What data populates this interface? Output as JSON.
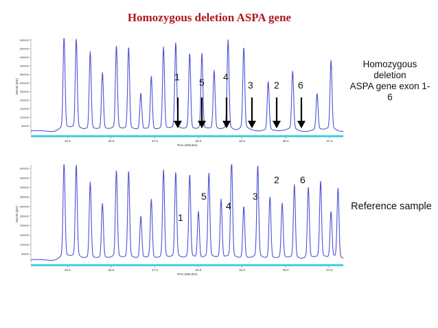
{
  "title": "Homozygous deletion ASPA gene",
  "annotations": {
    "top_note_lines": [
      "Homozygous",
      "deletion",
      "ASPA gene exon 1-6"
    ],
    "bottom_note": "Reference sample"
  },
  "exon_labels_top": [
    "1",
    "5",
    "4",
    "3",
    "2",
    "6"
  ],
  "exon_labels_bottom": [
    "1",
    "5",
    "4",
    "3",
    "2",
    "6"
  ],
  "colors": {
    "title": "#b0161d",
    "trace": "#4b4fd6",
    "axis_bar": "#3fd2e2"
  },
  "chart_data": [
    {
      "type": "line",
      "xlabel": "Time (Minutes)",
      "ylabel": "Mvolts (pre)",
      "xlim": [
        20.4,
        38.3
      ],
      "ylim": [
        0,
        560000
      ],
      "x_ticks": [
        "22.5",
        "25.0",
        "27.5",
        "30.0",
        "32.5",
        "35.0",
        "37.5"
      ],
      "y_ticks": [
        "50000",
        "100000",
        "150000",
        "200000",
        "250000",
        "300000",
        "350000",
        "400000",
        "450000",
        "500000",
        "550000"
      ],
      "peaks": [
        {
          "x": 22.3,
          "y": 525000
        },
        {
          "x": 23.0,
          "y": 505000
        },
        {
          "x": 23.8,
          "y": 440000
        },
        {
          "x": 24.5,
          "y": 320000
        },
        {
          "x": 25.3,
          "y": 470000
        },
        {
          "x": 26.0,
          "y": 465000
        },
        {
          "x": 26.7,
          "y": 205000
        },
        {
          "x": 27.3,
          "y": 300000
        },
        {
          "x": 28.0,
          "y": 465000
        },
        {
          "x": 28.7,
          "y": 485000
        },
        {
          "x": 29.5,
          "y": 430000
        },
        {
          "x": 30.2,
          "y": 430000
        },
        {
          "x": 30.9,
          "y": 330000
        },
        {
          "x": 31.7,
          "y": 505000
        },
        {
          "x": 32.6,
          "y": 460000
        },
        {
          "x": 34.0,
          "y": 275000
        },
        {
          "x": 35.4,
          "y": 330000
        },
        {
          "x": 36.8,
          "y": 205000
        },
        {
          "x": 37.6,
          "y": 390000
        }
      ]
    },
    {
      "type": "line",
      "xlabel": "Time (Minutes)",
      "ylabel": "Mvolts (pre)",
      "xlim": [
        20.4,
        38.3
      ],
      "ylim": [
        0,
        520000
      ],
      "x_ticks": [
        "22.5",
        "25.0",
        "27.5",
        "30.0",
        "32.5",
        "35.0",
        "37.5"
      ],
      "y_ticks": [
        "50000",
        "100000",
        "150000",
        "200000",
        "250000",
        "300000",
        "350000",
        "400000",
        "450000",
        "500000"
      ],
      "peaks": [
        {
          "x": 22.3,
          "y": 495000
        },
        {
          "x": 23.0,
          "y": 470000
        },
        {
          "x": 23.8,
          "y": 390000
        },
        {
          "x": 24.5,
          "y": 280000
        },
        {
          "x": 25.3,
          "y": 445000
        },
        {
          "x": 26.0,
          "y": 445000
        },
        {
          "x": 26.7,
          "y": 215000
        },
        {
          "x": 27.3,
          "y": 300000
        },
        {
          "x": 28.0,
          "y": 450000
        },
        {
          "x": 28.7,
          "y": 435000
        },
        {
          "x": 29.5,
          "y": 425000
        },
        {
          "x": 30.0,
          "y": 240000
        },
        {
          "x": 30.6,
          "y": 430000
        },
        {
          "x": 31.3,
          "y": 300000
        },
        {
          "x": 31.9,
          "y": 505000
        },
        {
          "x": 32.6,
          "y": 265000
        },
        {
          "x": 33.4,
          "y": 470000
        },
        {
          "x": 34.1,
          "y": 315000
        },
        {
          "x": 34.8,
          "y": 280000
        },
        {
          "x": 35.5,
          "y": 375000
        },
        {
          "x": 36.3,
          "y": 365000
        },
        {
          "x": 37.0,
          "y": 390000
        },
        {
          "x": 37.6,
          "y": 235000
        },
        {
          "x": 38.0,
          "y": 355000
        }
      ]
    }
  ]
}
